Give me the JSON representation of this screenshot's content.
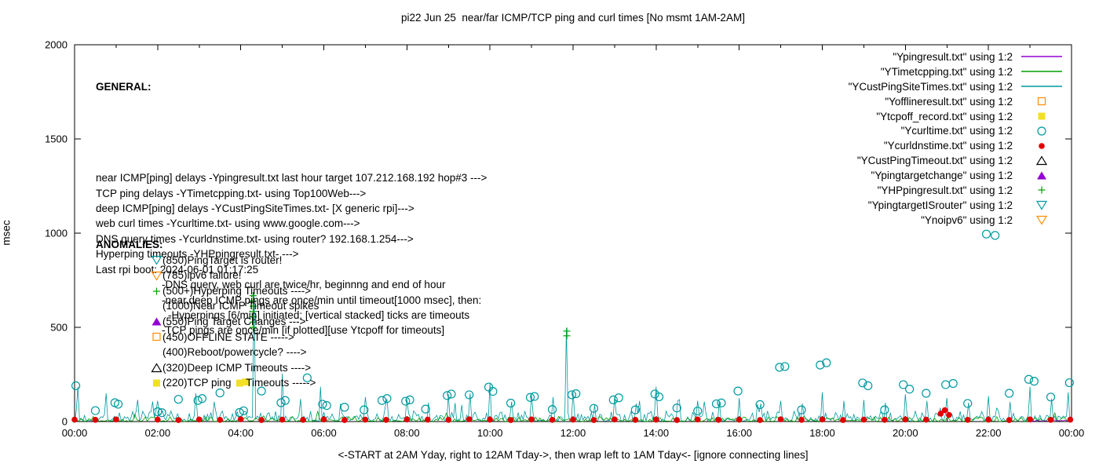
{
  "title": "pi22 Jun 25  near/far ICMP/TCP ping and curl times [No msmt 1AM-2AM]",
  "general": {
    "heading": "GENERAL:",
    "lines": [
      {
        "text": "near ICMP[ping] delays -Ypingresult.txt last hour target 107.212.168.192 hop#3 --->",
        "indent": 0
      },
      {
        "text": "TCP ping delays -YTimetcpping.txt- using Top100Web--->",
        "indent": 0
      },
      {
        "text": "deep ICMP[ping] delays -YCustPingSiteTimes.txt- [X generic rpi]--->",
        "indent": 0
      },
      {
        "text": "web curl times -Ycurltime.txt- using www.google.com--->",
        "indent": 0
      },
      {
        "text": "DNS query times -Ycurldnstime.txt- using router? 192.168.1.254--->",
        "indent": 0
      },
      {
        "text": "Hyperping timeouts -YHPpingresult.txt- --->",
        "indent": 0
      },
      {
        "text": "Last rpi boot: 2024-06-01 01:17:25",
        "indent": 0
      },
      {
        "text": "-DNS query, web curl are twice/hr, beginnng and end of hour",
        "indent": 1
      },
      {
        "text": "-near,deep ICMP pings are once/min until timeout[1000 msec], then:",
        "indent": 1
      },
      {
        "text": "-Hyperpings [6/min] initiated; [vertical stacked] ticks are timeouts",
        "indent": 2
      },
      {
        "text": "-TCP pings are once/min [if plotted][use Ytcpoff for timeouts]",
        "indent": 1
      }
    ]
  },
  "anomalies": {
    "heading": "ANOMALIES:",
    "items": [
      {
        "marker": "open-triangle-down",
        "color": "#00999e",
        "text": "(850)PingTarget is router!"
      },
      {
        "marker": "open-triangle-down",
        "color": "#ff8c00",
        "text": "(785)ipv6 failure!"
      },
      {
        "marker": "plus",
        "color": "#00a000",
        "text": "(500+)Hyperping Timeouts ---->"
      },
      {
        "marker": "",
        "color": "",
        "text": "(1000)Near ICMP Timeout spikes"
      },
      {
        "marker": "filled-triangle-up",
        "color": "#9400d3",
        "text": "(550)Ping Target Changes --->"
      },
      {
        "marker": "open-square",
        "color": "#ff8c00",
        "text": "(450)OFFLINE STATE ----->"
      },
      {
        "marker": "",
        "color": "",
        "text": "(400)Reboot/powercycle? ---->"
      },
      {
        "marker": "open-triangle-up",
        "color": "#000000",
        "text": "(320)Deep ICMP Timeouts ---->"
      },
      {
        "marker": "filled-square",
        "color": "#f2e024",
        "text": "(220)TCP ping ",
        "marker2": "filled-square",
        "color2": "#f2e024",
        "text2": "Timeouts ----->"
      }
    ]
  },
  "legend": {
    "items": [
      {
        "label": "\"Ypingresult.txt\" using 1:2",
        "marker": "line",
        "color": "#9400d3"
      },
      {
        "label": "\"YTimetcpping.txt\" using 1:2",
        "marker": "line",
        "color": "#00a000"
      },
      {
        "label": "\"YCustPingSiteTimes.txt\" using 1:2",
        "marker": "line",
        "color": "#00999e"
      },
      {
        "label": "\"Yofflineresult.txt\" using 1:2",
        "marker": "open-square",
        "color": "#ff8c00"
      },
      {
        "label": "\"Ytcpoff_record.txt\" using 1:2",
        "marker": "filled-square",
        "color": "#f2e024"
      },
      {
        "label": "\"Ycurltime.txt\" using 1:2",
        "marker": "open-circle",
        "color": "#00999e"
      },
      {
        "label": "\"Ycurldnstime.txt\" using 1:2",
        "marker": "filled-circle",
        "color": "#e10000"
      },
      {
        "label": "\"YCustPingTimeout.txt\" using 1:2",
        "marker": "open-triangle-up",
        "color": "#000000"
      },
      {
        "label": "\"Ypingtargetchange\" using 1:2",
        "marker": "filled-triangle-up",
        "color": "#9400d3"
      },
      {
        "label": "\"YHPpingresult.txt\" using 1:2",
        "marker": "plus",
        "color": "#00a000"
      },
      {
        "label": "\"YpingtargetISrouter\" using 1:2",
        "marker": "open-triangle-down",
        "color": "#00999e"
      },
      {
        "label": "\"Ynoipv6\" using 1:2",
        "marker": "open-triangle-down",
        "color": "#ff8c00"
      }
    ]
  },
  "chart_data": {
    "type": "line+scatter",
    "title": "pi22 Jun 25  near/far ICMP/TCP ping and curl times [No msmt 1AM-2AM]",
    "ylabel": "msec",
    "xlabel": "<-START at 2AM Yday, right to 12AM Tday->, then wrap left to 1AM Tday<- [ignore connecting lines]",
    "xlim_hours": [
      0,
      24
    ],
    "ylim": [
      0,
      2000
    ],
    "grid": false,
    "legend_position": "top-right",
    "yticks": [
      {
        "v": 0,
        "label": "0"
      },
      {
        "v": 500,
        "label": "500"
      },
      {
        "v": 1000,
        "label": "1000"
      },
      {
        "v": 1500,
        "label": "1500"
      },
      {
        "v": 2000,
        "label": "2000"
      }
    ],
    "xticks": [
      {
        "h": 0,
        "label": "00:00"
      },
      {
        "h": 2,
        "label": "02:00"
      },
      {
        "h": 4,
        "label": "04:00"
      },
      {
        "h": 6,
        "label": "06:00"
      },
      {
        "h": 8,
        "label": "08:00"
      },
      {
        "h": 10,
        "label": "10:00"
      },
      {
        "h": 12,
        "label": "12:00"
      },
      {
        "h": 14,
        "label": "14:00"
      },
      {
        "h": 16,
        "label": "16:00"
      },
      {
        "h": 18,
        "label": "18:00"
      },
      {
        "h": 20,
        "label": "20:00"
      },
      {
        "h": 22,
        "label": "22:00"
      },
      {
        "h": 24,
        "label": "00:00"
      }
    ],
    "series": [
      {
        "name": "YCustPingSiteTimes-deep-icmp-line",
        "type": "noise",
        "color": "#00999e",
        "from": 0,
        "to": 24,
        "step": 0.04,
        "base": 2,
        "amp": 55,
        "jitter_prob": 0.02,
        "jitter_amp": 110,
        "seed": 7,
        "spikes": [
          [
            0.08,
            185
          ],
          [
            0.75,
            150
          ],
          [
            2.0,
            110
          ],
          [
            2.9,
            150
          ],
          [
            3.35,
            105
          ],
          [
            4.3,
            695
          ],
          [
            5.0,
            255
          ],
          [
            5.45,
            120
          ],
          [
            5.9,
            185
          ],
          [
            6.4,
            95
          ],
          [
            7.0,
            130
          ],
          [
            7.5,
            120
          ],
          [
            8.0,
            120
          ],
          [
            8.5,
            100
          ],
          [
            9.0,
            145
          ],
          [
            9.5,
            150
          ],
          [
            10.0,
            205
          ],
          [
            10.5,
            105
          ],
          [
            11.0,
            140
          ],
          [
            11.5,
            130
          ],
          [
            11.85,
            495
          ],
          [
            12.0,
            155
          ],
          [
            12.5,
            90
          ],
          [
            13.0,
            130
          ],
          [
            13.5,
            95
          ],
          [
            14.0,
            185
          ],
          [
            14.5,
            110
          ],
          [
            15.0,
            110
          ],
          [
            15.5,
            105
          ],
          [
            16.0,
            125
          ],
          [
            16.5,
            95
          ],
          [
            17.0,
            110
          ],
          [
            17.5,
            95
          ],
          [
            18.0,
            155
          ],
          [
            18.5,
            110
          ],
          [
            19.0,
            115
          ],
          [
            19.5,
            100
          ],
          [
            20.0,
            145
          ],
          [
            20.5,
            110
          ],
          [
            21.0,
            125
          ],
          [
            21.5,
            100
          ],
          [
            22.0,
            135
          ],
          [
            22.5,
            105
          ],
          [
            23.0,
            185
          ],
          [
            23.5,
            120
          ],
          [
            23.9,
            155
          ]
        ]
      },
      {
        "name": "YTimetcpping-tcp-line",
        "type": "noise",
        "color": "#00a000",
        "from": 0,
        "to": 24,
        "step": 0.05,
        "base": 1,
        "amp": 26,
        "jitter_prob": 0.01,
        "jitter_amp": 55,
        "seed": 12,
        "spikes": []
      },
      {
        "name": "Ypingresult-near-icmp-last-hour-line",
        "type": "noise",
        "color": "#9400d3",
        "from": 23,
        "to": 24,
        "step": 0.04,
        "base": 2,
        "amp": 9,
        "jitter_prob": 0,
        "jitter_amp": 0,
        "seed": 3,
        "spikes": []
      },
      {
        "name": "YHPpingresult-hyperping-timeouts",
        "type": "scatter",
        "marker": "plus",
        "color": "#00a000",
        "points": [
          [
            4.3,
            500
          ],
          [
            4.3,
            528
          ],
          [
            4.3,
            556
          ],
          [
            4.3,
            584
          ],
          [
            4.3,
            612
          ],
          [
            4.3,
            640
          ],
          [
            4.3,
            668
          ],
          [
            11.85,
            455
          ],
          [
            11.85,
            480
          ]
        ]
      },
      {
        "name": "Ytcpoff-tcp-ping-timeout",
        "type": "scatter",
        "marker": "filled-square",
        "color": "#f2e024",
        "points": [
          [
            4.12,
            210
          ]
        ]
      },
      {
        "name": "Ycurltime-web-curl-times",
        "type": "scatter",
        "marker": "open-circle",
        "color": "#00999e",
        "points": [
          [
            0.03,
            190
          ],
          [
            0.5,
            58
          ],
          [
            0.97,
            100
          ],
          [
            1.05,
            92
          ],
          [
            2.0,
            52
          ],
          [
            2.1,
            47
          ],
          [
            2.5,
            118
          ],
          [
            2.97,
            112
          ],
          [
            3.07,
            122
          ],
          [
            3.5,
            152
          ],
          [
            3.97,
            48
          ],
          [
            4.07,
            57
          ],
          [
            4.5,
            162
          ],
          [
            4.97,
            100
          ],
          [
            5.07,
            112
          ],
          [
            5.6,
            232
          ],
          [
            5.97,
            92
          ],
          [
            6.07,
            85
          ],
          [
            6.5,
            76
          ],
          [
            6.97,
            62
          ],
          [
            7.4,
            112
          ],
          [
            7.52,
            122
          ],
          [
            7.97,
            108
          ],
          [
            8.07,
            115
          ],
          [
            8.45,
            66
          ],
          [
            8.97,
            138
          ],
          [
            9.07,
            146
          ],
          [
            9.5,
            142
          ],
          [
            9.97,
            183
          ],
          [
            10.07,
            160
          ],
          [
            10.5,
            98
          ],
          [
            10.97,
            128
          ],
          [
            11.07,
            133
          ],
          [
            11.5,
            64
          ],
          [
            11.97,
            142
          ],
          [
            12.07,
            148
          ],
          [
            12.5,
            70
          ],
          [
            12.97,
            115
          ],
          [
            13.1,
            126
          ],
          [
            13.5,
            62
          ],
          [
            13.97,
            146
          ],
          [
            14.07,
            131
          ],
          [
            14.5,
            72
          ],
          [
            15.0,
            56
          ],
          [
            15.45,
            94
          ],
          [
            15.57,
            99
          ],
          [
            15.97,
            162
          ],
          [
            16.5,
            90
          ],
          [
            16.97,
            288
          ],
          [
            17.1,
            292
          ],
          [
            17.5,
            62
          ],
          [
            17.95,
            300
          ],
          [
            18.1,
            312
          ],
          [
            18.97,
            205
          ],
          [
            19.1,
            190
          ],
          [
            19.5,
            62
          ],
          [
            19.95,
            196
          ],
          [
            20.1,
            172
          ],
          [
            20.5,
            150
          ],
          [
            20.97,
            196
          ],
          [
            21.15,
            202
          ],
          [
            21.5,
            96
          ],
          [
            21.95,
            995
          ],
          [
            22.16,
            988
          ],
          [
            22.5,
            150
          ],
          [
            22.97,
            224
          ],
          [
            23.1,
            214
          ],
          [
            23.5,
            130
          ],
          [
            23.95,
            206
          ]
        ]
      },
      {
        "name": "Ycurldnstime-dns-query-times",
        "type": "scatter",
        "marker": "filled-circle",
        "color": "#e10000",
        "points": [
          [
            0,
            10
          ],
          [
            0.5,
            9
          ],
          [
            1,
            11
          ],
          [
            2,
            10
          ],
          [
            2.5,
            8
          ],
          [
            3,
            11
          ],
          [
            3.5,
            9
          ],
          [
            4,
            12
          ],
          [
            4.5,
            8
          ],
          [
            5,
            10
          ],
          [
            5.5,
            9
          ],
          [
            6,
            11
          ],
          [
            6.5,
            8
          ],
          [
            7,
            10
          ],
          [
            7.5,
            9
          ],
          [
            8,
            11
          ],
          [
            8.5,
            10
          ],
          [
            9,
            9
          ],
          [
            9.5,
            12
          ],
          [
            10,
            10
          ],
          [
            10.5,
            8
          ],
          [
            11,
            11
          ],
          [
            11.5,
            9
          ],
          [
            12,
            10
          ],
          [
            12.5,
            8
          ],
          [
            13,
            11
          ],
          [
            13.5,
            9
          ],
          [
            14,
            10
          ],
          [
            14.5,
            8
          ],
          [
            15,
            11
          ],
          [
            15.5,
            9
          ],
          [
            16,
            10
          ],
          [
            16.5,
            8
          ],
          [
            17,
            12
          ],
          [
            17.5,
            9
          ],
          [
            18,
            11
          ],
          [
            18.5,
            8
          ],
          [
            19,
            10
          ],
          [
            19.5,
            9
          ],
          [
            20,
            11
          ],
          [
            20.5,
            10
          ],
          [
            20.85,
            42
          ],
          [
            20.95,
            60
          ],
          [
            21.05,
            35
          ],
          [
            21.5,
            9
          ],
          [
            22,
            10
          ],
          [
            22.5,
            8
          ],
          [
            23,
            11
          ],
          [
            23.5,
            9
          ],
          [
            23.97,
            10
          ]
        ]
      }
    ]
  }
}
